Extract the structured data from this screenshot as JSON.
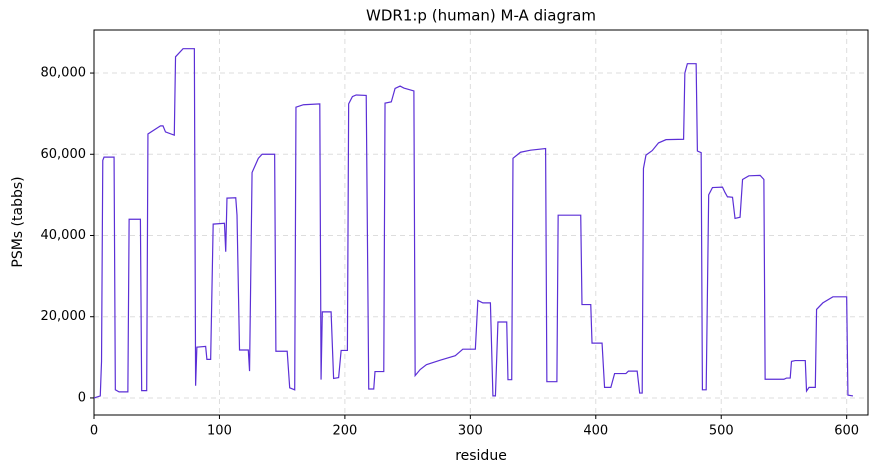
{
  "chart_data": {
    "type": "line",
    "title": "WDR1:p (human) M-A diagram",
    "x_label": "residue",
    "y_label": "PSMs (tabbs)",
    "x": [
      0,
      5,
      6,
      7,
      8,
      16,
      17,
      20,
      27,
      28,
      37,
      38,
      42,
      43,
      53,
      55,
      57,
      64,
      65,
      71,
      80,
      81,
      82,
      89,
      90,
      93,
      95,
      104,
      105,
      106,
      113,
      114,
      116,
      123,
      124,
      126,
      131,
      134,
      144,
      145,
      154,
      156,
      160,
      161,
      167,
      180,
      181,
      182,
      189,
      191,
      195,
      197,
      202,
      203,
      206,
      209,
      217,
      219,
      223,
      224,
      231,
      232,
      237,
      240,
      244,
      247,
      255,
      256,
      260,
      265,
      276,
      288,
      294,
      304,
      306,
      310,
      316,
      318,
      320,
      322,
      329,
      330,
      333,
      334,
      340,
      348,
      360,
      361,
      369,
      370,
      388,
      389,
      396,
      397,
      405,
      407,
      412,
      415,
      424,
      426,
      433,
      435,
      437,
      438,
      440,
      445,
      450,
      456,
      470,
      471,
      473,
      480,
      481,
      484,
      485,
      488,
      490,
      493,
      501,
      503,
      505,
      506,
      509,
      511,
      515,
      517,
      522,
      531,
      534,
      535,
      550,
      552,
      555,
      556,
      559,
      567,
      568,
      570,
      575,
      576,
      581,
      589,
      600,
      601,
      605
    ],
    "series": [
      {
        "name": "WDR1:p",
        "color": "#5b2fd6",
        "values": [
          0,
          500,
          9000,
          58500,
          59300,
          59300,
          2000,
          1500,
          1500,
          44000,
          44000,
          1800,
          1800,
          65000,
          67000,
          67000,
          65500,
          64700,
          84000,
          86000,
          86000,
          3000,
          12500,
          12700,
          9500,
          9500,
          42800,
          43000,
          36000,
          49200,
          49300,
          45000,
          11800,
          11800,
          6600,
          55500,
          59000,
          60000,
          60000,
          11500,
          11500,
          2500,
          2000,
          71600,
          72200,
          72400,
          4500,
          21200,
          21200,
          4800,
          5000,
          11700,
          11700,
          72400,
          74200,
          74600,
          74500,
          2200,
          2200,
          6500,
          6500,
          72600,
          72900,
          76200,
          76800,
          76300,
          75600,
          5500,
          7000,
          8200,
          9300,
          10400,
          12000,
          12000,
          24000,
          23400,
          23400,
          500,
          500,
          18700,
          18700,
          4500,
          4500,
          59000,
          60500,
          61000,
          61400,
          4000,
          4000,
          45000,
          45000,
          23000,
          23000,
          13500,
          13500,
          2600,
          2600,
          6000,
          6000,
          6600,
          6600,
          1200,
          1200,
          56500,
          59800,
          60900,
          62800,
          63600,
          63700,
          80000,
          82300,
          82300,
          60800,
          60400,
          2000,
          2000,
          50000,
          51800,
          51900,
          50600,
          49500,
          49500,
          49400,
          44200,
          44500,
          53800,
          54700,
          54800,
          53800,
          4600,
          4600,
          4900,
          4900,
          9000,
          9200,
          9200,
          1700,
          2600,
          2600,
          21800,
          23400,
          24900,
          24900,
          700,
          500
        ]
      }
    ],
    "xlim": [
      0,
      617
    ],
    "xticks": [
      0,
      100,
      200,
      300,
      400,
      500,
      600
    ],
    "ylim": [
      -4200,
      90600
    ],
    "yticks": [
      0,
      {
        "value": 20000,
        "label": "20,000"
      },
      {
        "value": 40000,
        "label": "40,000"
      },
      {
        "value": 60000,
        "label": "60,000"
      },
      {
        "value": 80000,
        "label": "80,000"
      }
    ],
    "grid": true
  }
}
